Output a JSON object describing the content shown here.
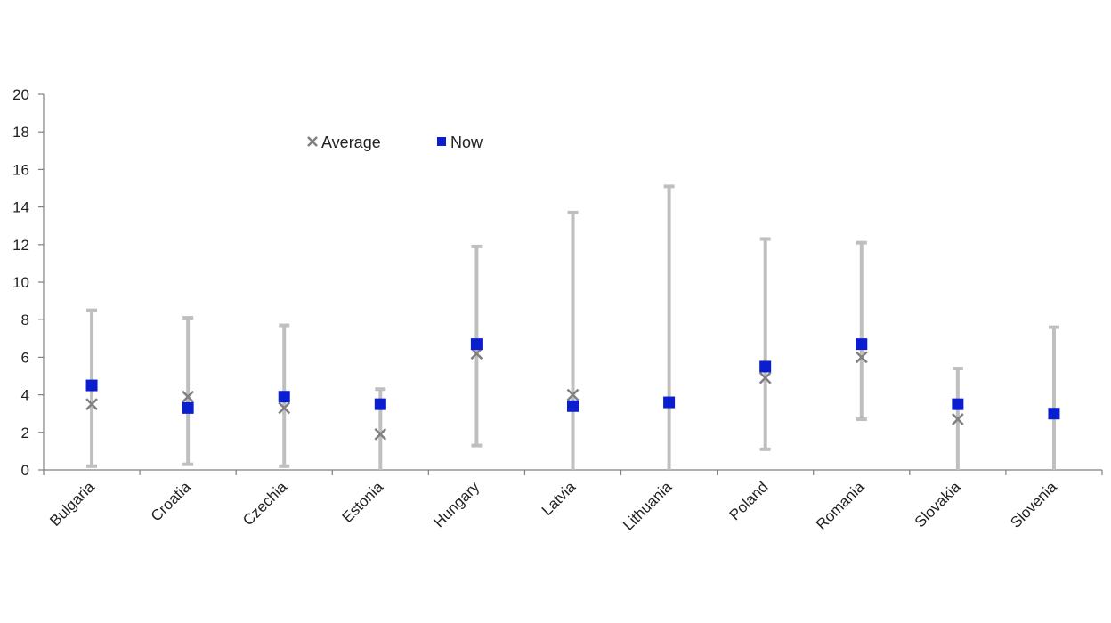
{
  "chart_data": {
    "type": "scatter",
    "title": "",
    "xlabel": "",
    "ylabel": "",
    "ylim": [
      0,
      20
    ],
    "yticks": [
      0,
      2,
      4,
      6,
      8,
      10,
      12,
      14,
      16,
      18,
      20
    ],
    "grid": false,
    "legend_position": "top-left",
    "categories": [
      "Bulgaria",
      "Croatia",
      "Czechia",
      "Estonia",
      "Hungary",
      "Latvia",
      "Lithuania",
      "Poland",
      "Romania",
      "Slovakia",
      "Slovenia"
    ],
    "range": {
      "min": [
        0.2,
        0.3,
        0.2,
        0.0,
        1.3,
        0.0,
        0.0,
        1.1,
        2.7,
        0.0,
        0.0
      ],
      "max": [
        8.5,
        8.1,
        7.7,
        4.3,
        11.9,
        13.7,
        15.1,
        12.3,
        12.1,
        5.4,
        7.6
      ]
    },
    "series": [
      {
        "name": "Average",
        "marker": "x",
        "color": "#808080",
        "values": [
          3.5,
          3.9,
          3.3,
          1.9,
          6.2,
          4.0,
          null,
          4.9,
          6.0,
          2.7,
          null
        ]
      },
      {
        "name": "Now",
        "marker": "square",
        "color": "#0a1ecf",
        "values": [
          4.5,
          3.3,
          3.9,
          3.5,
          6.7,
          3.4,
          3.6,
          5.5,
          6.7,
          3.5,
          3.0
        ]
      }
    ],
    "colors": {
      "range": "#bfbfbf",
      "axis": "#808080"
    }
  }
}
